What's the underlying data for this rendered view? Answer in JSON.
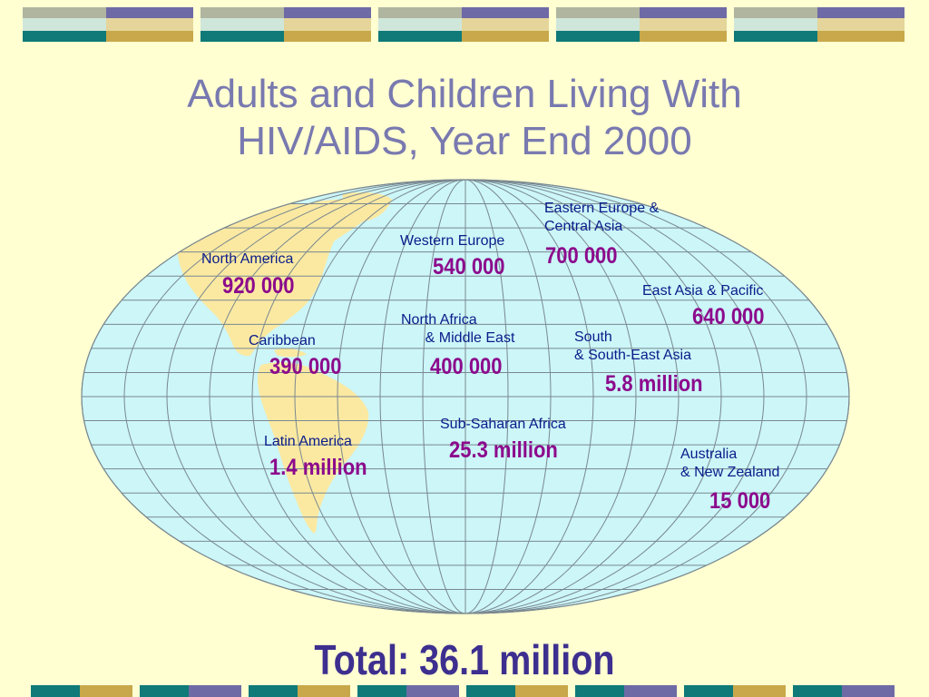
{
  "title": {
    "line1": "Adults and Children Living With",
    "line2": "HIV/AIDS, Year End 2000"
  },
  "colors": {
    "background": "#FFFFD2",
    "title": "#7979B0",
    "region_label": "#0A1C8A",
    "value": "#8C0A8C",
    "ocean": "#CCF6F8",
    "land": "#FBE9A2",
    "total": "#3D2F8F"
  },
  "regions": [
    {
      "name": "North America",
      "value": "920 000"
    },
    {
      "name": "Caribbean",
      "value": "390 000"
    },
    {
      "name": "Latin America",
      "value": "1.4 million"
    },
    {
      "name": "Western Europe",
      "value": "540 000"
    },
    {
      "name": "North Africa\n      & Middle East",
      "value": "400 000"
    },
    {
      "name": "Sub-Saharan Africa",
      "value": "25.3 million"
    },
    {
      "name": "Eastern Europe &\nCentral Asia",
      "value": "700 000"
    },
    {
      "name": "East Asia & Pacific",
      "value": "640 000"
    },
    {
      "name": "South\n& South-East Asia",
      "value": "5.8 million"
    },
    {
      "name": "Australia\n& New Zealand",
      "value": "15 000"
    }
  ],
  "total": "Total: 36.1 million"
}
